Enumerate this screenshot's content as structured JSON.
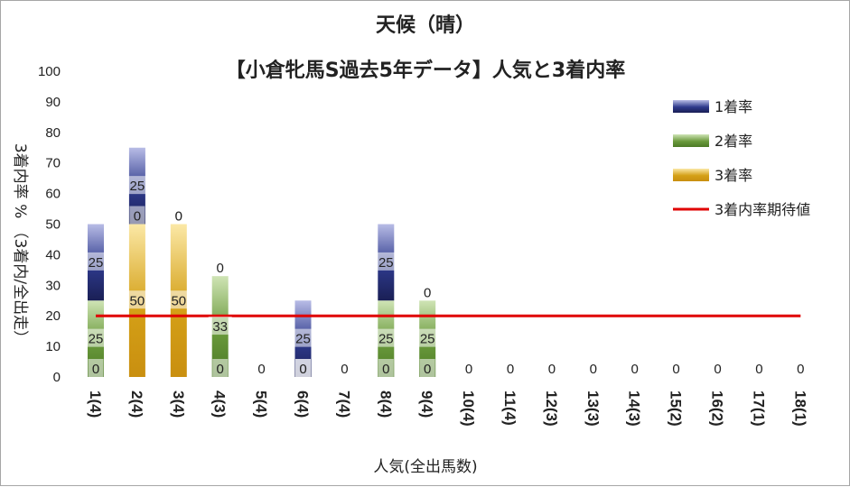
{
  "chart_data": {
    "type": "bar",
    "stacked": true,
    "title": "天候（晴）",
    "subtitle": "【小倉牝馬S過去5年データ】人気と3着内率",
    "xlabel": "人気(全出馬数)",
    "ylabel": "3着内率 % （3着内/全出走）",
    "ylim": [
      0,
      100
    ],
    "yticks": [
      0,
      10,
      20,
      30,
      40,
      50,
      60,
      70,
      80,
      90,
      100
    ],
    "categories": [
      "1(4)",
      "2(4)",
      "3(4)",
      "4(3)",
      "5(4)",
      "6(4)",
      "7(4)",
      "8(4)",
      "9(4)",
      "10(4)",
      "11(4)",
      "12(3)",
      "13(3)",
      "14(3)",
      "15(2)",
      "16(2)",
      "17(1)",
      "18(1)"
    ],
    "series": [
      {
        "name": "3着率",
        "color": "#d4a017",
        "values": [
          0,
          50,
          50,
          0,
          0,
          0,
          0,
          0,
          0,
          0,
          0,
          0,
          0,
          0,
          0,
          0,
          0,
          0
        ]
      },
      {
        "name": "2着率",
        "color": "#6a9a3c",
        "values": [
          25,
          0,
          0,
          33,
          0,
          0,
          0,
          25,
          25,
          0,
          0,
          0,
          0,
          0,
          0,
          0,
          0,
          0
        ]
      },
      {
        "name": "1着率",
        "color": "#2e3a8c",
        "values": [
          25,
          25,
          0,
          0,
          0,
          25,
          0,
          25,
          0,
          0,
          0,
          0,
          0,
          0,
          0,
          0,
          0,
          0
        ]
      }
    ],
    "reference_line": {
      "name": "3着内率期待値",
      "value": 20,
      "color": "#e00000"
    },
    "legend": {
      "position": "right",
      "order": [
        "1着率",
        "2着率",
        "3着率",
        "3着内率期待値"
      ]
    },
    "grid": false
  }
}
